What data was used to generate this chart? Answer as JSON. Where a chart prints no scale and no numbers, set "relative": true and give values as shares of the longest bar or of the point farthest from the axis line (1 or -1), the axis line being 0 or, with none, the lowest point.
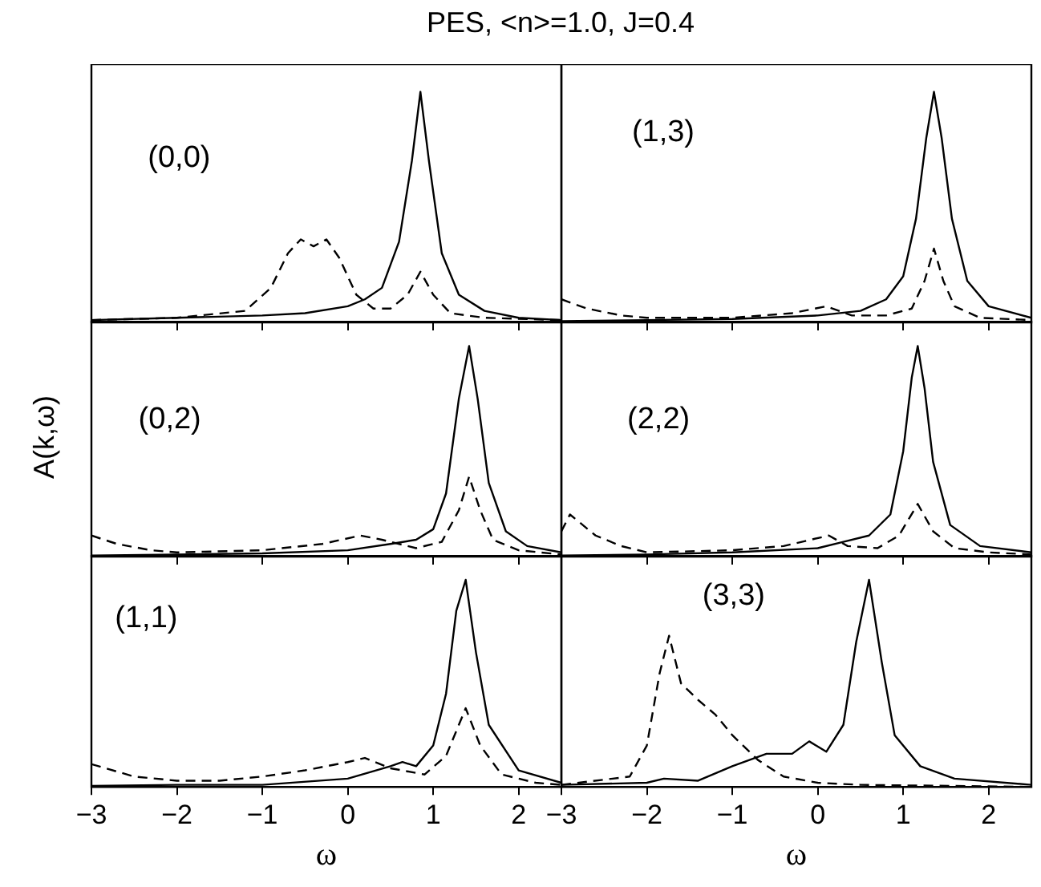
{
  "chart_data": [
    {
      "type": "line",
      "title": "PES, <n>=1.0, J=0.4",
      "relative": true,
      "xlim": [
        -3,
        2.5
      ],
      "xticks": [
        -3,
        -2,
        -1,
        0,
        1,
        2
      ],
      "tick_labels": false,
      "marker": "none",
      "annotations": [
        "(0,0)"
      ],
      "series": [
        {
          "color": "#000000",
          "line_style": "solid",
          "x": [
            -3,
            -2,
            -1,
            -0.5,
            0,
            0.2,
            0.4,
            0.6,
            0.75,
            0.85,
            0.95,
            1.1,
            1.3,
            1.6,
            2,
            2.5
          ],
          "values": [
            0.01,
            0.02,
            0.03,
            0.04,
            0.07,
            0.1,
            0.15,
            0.35,
            0.7,
            1,
            0.7,
            0.3,
            0.12,
            0.05,
            0.02,
            0.01
          ]
        },
        {
          "color": "#000000",
          "line_style": "dashed",
          "x": [
            -3,
            -2,
            -1.2,
            -0.9,
            -0.7,
            -0.55,
            -0.4,
            -0.25,
            -0.1,
            0.1,
            0.3,
            0.5,
            0.7,
            0.85,
            1,
            1.2,
            1.6,
            2.5
          ],
          "values": [
            0.01,
            0.02,
            0.05,
            0.15,
            0.3,
            0.36,
            0.33,
            0.36,
            0.28,
            0.12,
            0.06,
            0.06,
            0.12,
            0.22,
            0.12,
            0.04,
            0.02,
            0.01
          ]
        }
      ]
    },
    {
      "type": "line",
      "relative": true,
      "xlim": [
        -3,
        2.5
      ],
      "xticks": [
        -3,
        -2,
        -1,
        0,
        1,
        2
      ],
      "tick_labels": false,
      "marker": "none",
      "annotations": [
        "(1,3)"
      ],
      "series": [
        {
          "color": "#000000",
          "line_style": "solid",
          "x": [
            -3,
            -2,
            -1,
            0,
            0.5,
            0.8,
            1,
            1.15,
            1.27,
            1.36,
            1.45,
            1.57,
            1.75,
            2,
            2.5
          ],
          "values": [
            0.005,
            0.01,
            0.015,
            0.03,
            0.05,
            0.1,
            0.2,
            0.45,
            0.8,
            1,
            0.8,
            0.45,
            0.18,
            0.07,
            0.02
          ]
        },
        {
          "color": "#000000",
          "line_style": "dashed",
          "x": [
            -3,
            -2.7,
            -2.3,
            -2,
            -1,
            -0.3,
            0.1,
            0.4,
            0.8,
            1.1,
            1.25,
            1.36,
            1.47,
            1.6,
            1.9,
            2.5
          ],
          "values": [
            0.1,
            0.06,
            0.03,
            0.02,
            0.02,
            0.04,
            0.07,
            0.03,
            0.03,
            0.06,
            0.18,
            0.32,
            0.18,
            0.07,
            0.02,
            0.01
          ]
        }
      ]
    },
    {
      "type": "line",
      "ylabel": "A(k,ω)",
      "relative": true,
      "xlim": [
        -3,
        2.5
      ],
      "xticks": [
        -3,
        -2,
        -1,
        0,
        1,
        2
      ],
      "tick_labels": false,
      "marker": "none",
      "annotations": [
        "(0,2)"
      ],
      "series": [
        {
          "color": "#000000",
          "line_style": "solid",
          "x": [
            -3,
            -2,
            -1,
            0,
            0.5,
            0.8,
            1,
            1.15,
            1.3,
            1.42,
            1.52,
            1.65,
            1.85,
            2.1,
            2.5
          ],
          "values": [
            0.005,
            0.01,
            0.015,
            0.03,
            0.06,
            0.08,
            0.13,
            0.3,
            0.75,
            1,
            0.75,
            0.35,
            0.12,
            0.05,
            0.02
          ]
        },
        {
          "color": "#000000",
          "line_style": "dashed",
          "x": [
            -3,
            -2.7,
            -2.3,
            -2,
            -1,
            -0.3,
            0.15,
            0.4,
            0.8,
            1.1,
            1.3,
            1.42,
            1.55,
            1.7,
            2,
            2.5
          ],
          "values": [
            0.1,
            0.06,
            0.03,
            0.02,
            0.03,
            0.06,
            0.1,
            0.08,
            0.04,
            0.07,
            0.22,
            0.38,
            0.22,
            0.08,
            0.03,
            0.01
          ]
        }
      ]
    },
    {
      "type": "line",
      "relative": true,
      "xlim": [
        -3,
        2.5
      ],
      "xticks": [
        -3,
        -2,
        -1,
        0,
        1,
        2
      ],
      "tick_labels": false,
      "marker": "none",
      "annotations": [
        "(2,2)"
      ],
      "series": [
        {
          "color": "#000000",
          "line_style": "solid",
          "x": [
            -3,
            -2,
            -1,
            0,
            0.3,
            0.6,
            0.85,
            1,
            1.1,
            1.17,
            1.25,
            1.35,
            1.55,
            1.9,
            2.5
          ],
          "values": [
            0.005,
            0.01,
            0.02,
            0.04,
            0.07,
            0.1,
            0.2,
            0.5,
            0.85,
            1,
            0.8,
            0.45,
            0.15,
            0.05,
            0.02
          ]
        },
        {
          "color": "#000000",
          "line_style": "dashed",
          "x": [
            -3,
            -2.9,
            -2.6,
            -2.3,
            -2,
            -1,
            -0.4,
            0.13,
            0.35,
            0.7,
            0.95,
            1.17,
            1.35,
            1.6,
            2,
            2.5
          ],
          "values": [
            0.12,
            0.2,
            0.1,
            0.05,
            0.02,
            0.03,
            0.05,
            0.1,
            0.05,
            0.04,
            0.1,
            0.25,
            0.12,
            0.04,
            0.02,
            0.01
          ]
        }
      ]
    },
    {
      "type": "line",
      "xlabel": "ω",
      "relative": true,
      "xlim": [
        -3,
        2.5
      ],
      "xticks": [
        -3,
        -2,
        -1,
        0,
        1,
        2
      ],
      "tick_labels": "x",
      "marker": "none",
      "annotations": [
        "(1,1)"
      ],
      "series": [
        {
          "color": "#000000",
          "line_style": "solid",
          "x": [
            -3,
            -2,
            -1,
            0,
            0.5,
            0.64,
            0.8,
            1,
            1.15,
            1.27,
            1.38,
            1.5,
            1.65,
            2,
            2.5
          ],
          "values": [
            0.005,
            0.01,
            0.01,
            0.04,
            0.1,
            0.12,
            0.1,
            0.2,
            0.45,
            0.85,
            1,
            0.65,
            0.3,
            0.08,
            0.02
          ]
        },
        {
          "color": "#000000",
          "line_style": "dashed",
          "x": [
            -3,
            -2.5,
            -2,
            -1.5,
            -1,
            -0.5,
            0,
            0.2,
            0.5,
            0.9,
            1.15,
            1.38,
            1.55,
            1.8,
            2.2,
            2.5
          ],
          "values": [
            0.11,
            0.05,
            0.03,
            0.03,
            0.05,
            0.08,
            0.12,
            0.14,
            0.09,
            0.06,
            0.15,
            0.38,
            0.2,
            0.06,
            0.02,
            0.01
          ]
        }
      ]
    },
    {
      "type": "line",
      "xlabel": "ω",
      "relative": true,
      "xlim": [
        -3,
        2.5
      ],
      "xticks": [
        -3,
        -2,
        -1,
        0,
        1,
        2
      ],
      "tick_labels": "x",
      "marker": "none",
      "annotations": [
        "(3,3)"
      ],
      "series": [
        {
          "color": "#000000",
          "line_style": "solid",
          "x": [
            -3,
            -2,
            -1.8,
            -1.4,
            -1,
            -0.6,
            -0.3,
            -0.1,
            0.1,
            0.3,
            0.45,
            0.6,
            0.75,
            0.9,
            1.2,
            1.6,
            2.5
          ],
          "values": [
            0.01,
            0.02,
            0.04,
            0.03,
            0.1,
            0.16,
            0.16,
            0.22,
            0.17,
            0.3,
            0.7,
            1,
            0.6,
            0.25,
            0.1,
            0.04,
            0.01
          ]
        },
        {
          "color": "#000000",
          "line_style": "dashed",
          "x": [
            -3,
            -2.2,
            -2,
            -1.85,
            -1.74,
            -1.6,
            -1.4,
            -1.2,
            -1,
            -0.7,
            -0.4,
            0,
            0.5,
            2.5
          ],
          "values": [
            0.01,
            0.05,
            0.2,
            0.55,
            0.73,
            0.5,
            0.42,
            0.35,
            0.25,
            0.13,
            0.05,
            0.02,
            0.01,
            0
          ]
        }
      ]
    }
  ]
}
